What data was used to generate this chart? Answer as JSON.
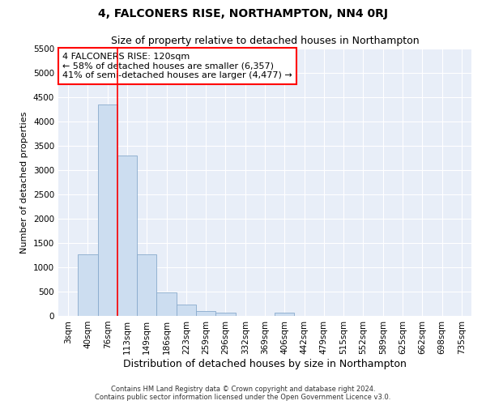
{
  "title": "4, FALCONERS RISE, NORTHAMPTON, NN4 0RJ",
  "subtitle": "Size of property relative to detached houses in Northampton",
  "xlabel": "Distribution of detached houses by size in Northampton",
  "ylabel": "Number of detached properties",
  "categories": [
    "3sqm",
    "40sqm",
    "76sqm",
    "113sqm",
    "149sqm",
    "186sqm",
    "223sqm",
    "259sqm",
    "296sqm",
    "332sqm",
    "369sqm",
    "406sqm",
    "442sqm",
    "479sqm",
    "515sqm",
    "552sqm",
    "589sqm",
    "625sqm",
    "662sqm",
    "698sqm",
    "735sqm"
  ],
  "values": [
    0,
    1270,
    4350,
    3300,
    1270,
    480,
    240,
    100,
    60,
    0,
    0,
    60,
    0,
    0,
    0,
    0,
    0,
    0,
    0,
    0,
    0
  ],
  "bar_color": "#ccddf0",
  "bar_edgecolor": "#88aacc",
  "vline_x_index": 2.5,
  "annotation_text_line1": "4 FALCONERS RISE: 120sqm",
  "annotation_text_line2": "← 58% of detached houses are smaller (6,357)",
  "annotation_text_line3": "41% of semi-detached houses are larger (4,477) →",
  "annotation_box_color": "white",
  "annotation_box_edgecolor": "red",
  "vline_color": "red",
  "ylim": [
    0,
    5500
  ],
  "yticks": [
    0,
    500,
    1000,
    1500,
    2000,
    2500,
    3000,
    3500,
    4000,
    4500,
    5000,
    5500
  ],
  "footer_line1": "Contains HM Land Registry data © Crown copyright and database right 2024.",
  "footer_line2": "Contains public sector information licensed under the Open Government Licence v3.0.",
  "bg_color": "#e8eef8",
  "title_fontsize": 10,
  "subtitle_fontsize": 9,
  "xlabel_fontsize": 9,
  "ylabel_fontsize": 8,
  "tick_fontsize": 7.5,
  "annot_fontsize": 8
}
